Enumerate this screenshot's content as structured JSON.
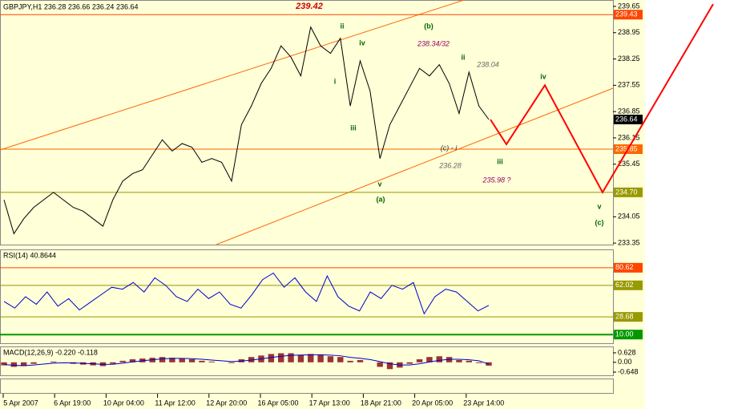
{
  "chart_data": [
    {
      "type": "line",
      "title": "GBPJPY,H1 236.28 236.66 236.24 236.64",
      "color": "#000000",
      "values": [
        234.5,
        233.6,
        234.0,
        234.3,
        234.5,
        234.7,
        234.5,
        234.3,
        234.2,
        234.0,
        233.8,
        234.5,
        235.0,
        235.2,
        235.3,
        235.7,
        236.1,
        235.8,
        236.0,
        235.9,
        235.5,
        235.6,
        235.5,
        235.0,
        236.5,
        237.0,
        237.6,
        238.0,
        238.6,
        238.3,
        237.8,
        239.1,
        238.6,
        238.4,
        238.8,
        237.0,
        238.2,
        237.4,
        235.6,
        236.5,
        237.0,
        237.5,
        238.0,
        237.8,
        238.1,
        237.6,
        236.8,
        237.9,
        237.0,
        236.64
      ],
      "ylim": [
        233.31,
        239.82
      ],
      "yticks": [
        239.65,
        238.95,
        238.25,
        237.55,
        236.85,
        236.15,
        235.45,
        234.05,
        233.35
      ],
      "levels": [
        {
          "value": 239.43,
          "color": "#ff4500"
        },
        {
          "value": 235.85,
          "color": "#ff6600"
        },
        {
          "value": 234.7,
          "label": "234.70",
          "color": "#999900"
        }
      ],
      "last": 236.64,
      "forecast": {
        "color": "#ff0000",
        "values": [
          236.64,
          235.98,
          237.55,
          234.7,
          239.71
        ]
      },
      "annotations": [
        {
          "text": "239.42",
          "color": "#cc0000"
        },
        {
          "text": "ii",
          "color": "#006600"
        },
        {
          "text": "iv",
          "color": "#006600"
        },
        {
          "text": "i",
          "color": "#006600"
        },
        {
          "text": "iii",
          "color": "#006600"
        },
        {
          "text": "v",
          "color": "#006600"
        },
        {
          "text": "(a)",
          "color": "#006600"
        },
        {
          "text": "(b)",
          "color": "#006600"
        },
        {
          "text": "238.34/32",
          "color": "#990066"
        },
        {
          "text": "ii",
          "color": "#006600"
        },
        {
          "text": "238.04",
          "color": "#666666"
        },
        {
          "text": "(c) - i",
          "color": "#333333"
        },
        {
          "text": "236.28",
          "color": "#666666"
        },
        {
          "text": "235.98 ?",
          "color": "#990066"
        },
        {
          "text": "iii",
          "color": "#006600"
        },
        {
          "text": "iv",
          "color": "#006600"
        },
        {
          "text": "v",
          "color": "#006600"
        },
        {
          "text": "(c)",
          "color": "#006600"
        }
      ],
      "x_labels": [
        "5 Apr 2007",
        "6 Apr 19:00",
        "10 Apr 04:00",
        "11 Apr 12:00",
        "12 Apr 20:00",
        "16 Apr 05:00",
        "17 Apr 13:00",
        "18 Apr 21:00",
        "20 Apr 05:00",
        "23 Apr 14:00"
      ]
    },
    {
      "type": "line",
      "title": "RSI(14) 40.8644",
      "color": "#0000cc",
      "values": [
        45,
        38,
        50,
        42,
        55,
        40,
        48,
        36,
        44,
        52,
        60,
        58,
        65,
        55,
        70,
        62,
        50,
        45,
        58,
        48,
        55,
        42,
        38,
        52,
        68,
        75,
        60,
        70,
        55,
        45,
        72,
        50,
        40,
        35,
        55,
        48,
        62,
        58,
        65,
        32,
        50,
        58,
        55,
        45,
        35,
        40.86
      ],
      "ylim": [
        0,
        100
      ],
      "levels": [
        {
          "value": 80.62,
          "color": "#ff4500"
        },
        {
          "value": 62.02,
          "color": "#999900"
        },
        {
          "value": 28.68,
          "color": "#999900"
        },
        {
          "value": 10,
          "label": "10.00",
          "color": "#009900"
        }
      ]
    },
    {
      "type": "macd",
      "title": "MACD(12,26,9) -0.220 -0.118",
      "color": "#993333",
      "signal_color": "#0000cc",
      "values": [
        -0.2,
        -0.3,
        -0.25,
        -0.1,
        0.0,
        0.05,
        0.0,
        -0.1,
        -0.15,
        -0.2,
        -0.25,
        -0.1,
        0.1,
        0.2,
        0.25,
        0.3,
        0.35,
        0.3,
        0.25,
        0.2,
        0.1,
        0.05,
        0.0,
        -0.05,
        0.2,
        0.35,
        0.45,
        0.55,
        0.6,
        0.6,
        0.5,
        0.55,
        0.5,
        0.4,
        0.35,
        0.1,
        0.15,
        0.0,
        -0.3,
        -0.45,
        -0.35,
        -0.1,
        0.2,
        0.35,
        0.4,
        0.35,
        0.15,
        0.1,
        -0.05,
        -0.22
      ],
      "signal": [
        -0.15,
        -0.2,
        -0.22,
        -0.18,
        -0.12,
        -0.06,
        -0.03,
        -0.04,
        -0.07,
        -0.1,
        -0.14,
        -0.13,
        -0.06,
        0.03,
        0.1,
        0.17,
        0.23,
        0.26,
        0.26,
        0.24,
        0.2,
        0.15,
        0.1,
        0.05,
        0.08,
        0.15,
        0.23,
        0.32,
        0.4,
        0.46,
        0.48,
        0.5,
        0.5,
        0.47,
        0.43,
        0.33,
        0.27,
        0.18,
        0.05,
        -0.1,
        -0.18,
        -0.18,
        -0.1,
        0.02,
        0.13,
        0.2,
        0.2,
        0.17,
        0.1,
        -0.12
      ],
      "ylim": [
        -0.86,
        1.05
      ],
      "yticks": [
        0.628,
        {
          "value": 0,
          "label": "0.00"
        },
        -0.648
      ]
    }
  ]
}
